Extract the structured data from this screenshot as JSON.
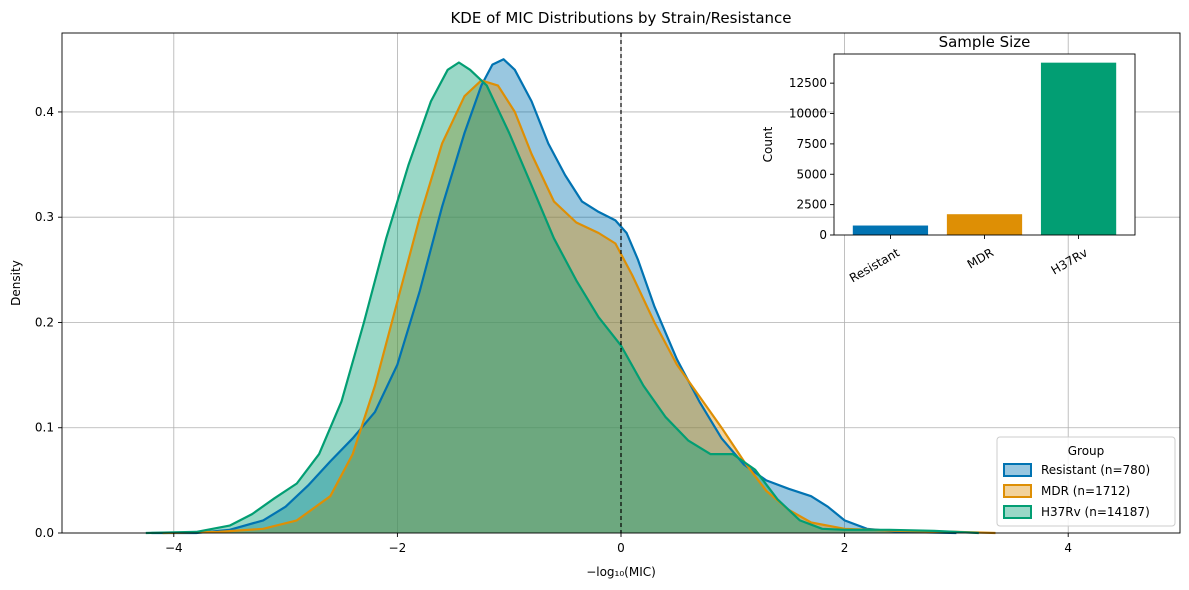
{
  "chart_data": [
    {
      "type": "area",
      "title": "KDE of MIC Distributions by Strain/Resistance",
      "xlabel": "−log₁₀(MIC)",
      "ylabel": "Density",
      "xlim": [
        -5,
        5
      ],
      "ylim": [
        0,
        0.475
      ],
      "xticks": [
        -4,
        -2,
        0,
        2,
        4
      ],
      "xtick_labels": [
        "−4",
        "−2",
        "0",
        "2",
        "4"
      ],
      "yticks": [
        0.0,
        0.1,
        0.2,
        0.3,
        0.4
      ],
      "ytick_labels": [
        "0.0",
        "0.1",
        "0.2",
        "0.3",
        "0.4"
      ],
      "grid": true,
      "vline": {
        "x": 0,
        "style": "dashed"
      },
      "legend": {
        "title": "Group",
        "placement": "lower-right"
      },
      "series": [
        {
          "name": "Resistant (n=780)",
          "color": "#0173b2",
          "points": [
            [
              -4.2,
              0.0
            ],
            [
              -3.8,
              0.0
            ],
            [
              -3.5,
              0.003
            ],
            [
              -3.2,
              0.012
            ],
            [
              -3.0,
              0.025
            ],
            [
              -2.8,
              0.045
            ],
            [
              -2.6,
              0.068
            ],
            [
              -2.4,
              0.09
            ],
            [
              -2.2,
              0.115
            ],
            [
              -2.0,
              0.16
            ],
            [
              -1.8,
              0.23
            ],
            [
              -1.6,
              0.31
            ],
            [
              -1.4,
              0.38
            ],
            [
              -1.25,
              0.425
            ],
            [
              -1.15,
              0.445
            ],
            [
              -1.05,
              0.45
            ],
            [
              -0.95,
              0.44
            ],
            [
              -0.8,
              0.41
            ],
            [
              -0.65,
              0.37
            ],
            [
              -0.5,
              0.34
            ],
            [
              -0.35,
              0.315
            ],
            [
              -0.2,
              0.305
            ],
            [
              -0.05,
              0.297
            ],
            [
              0.05,
              0.285
            ],
            [
              0.15,
              0.26
            ],
            [
              0.3,
              0.215
            ],
            [
              0.5,
              0.165
            ],
            [
              0.7,
              0.125
            ],
            [
              0.9,
              0.09
            ],
            [
              1.1,
              0.065
            ],
            [
              1.3,
              0.05
            ],
            [
              1.5,
              0.042
            ],
            [
              1.7,
              0.035
            ],
            [
              1.85,
              0.025
            ],
            [
              2.0,
              0.012
            ],
            [
              2.2,
              0.004
            ],
            [
              2.5,
              0.001
            ],
            [
              3.0,
              0.0
            ]
          ]
        },
        {
          "name": "MDR (n=1712)",
          "color": "#de8f05",
          "points": [
            [
              -4.1,
              0.0
            ],
            [
              -3.6,
              0.001
            ],
            [
              -3.2,
              0.004
            ],
            [
              -2.9,
              0.012
            ],
            [
              -2.6,
              0.035
            ],
            [
              -2.4,
              0.075
            ],
            [
              -2.2,
              0.14
            ],
            [
              -2.0,
              0.22
            ],
            [
              -1.8,
              0.3
            ],
            [
              -1.6,
              0.37
            ],
            [
              -1.4,
              0.415
            ],
            [
              -1.25,
              0.43
            ],
            [
              -1.1,
              0.425
            ],
            [
              -0.95,
              0.4
            ],
            [
              -0.8,
              0.36
            ],
            [
              -0.6,
              0.315
            ],
            [
              -0.4,
              0.295
            ],
            [
              -0.2,
              0.285
            ],
            [
              -0.05,
              0.275
            ],
            [
              0.1,
              0.245
            ],
            [
              0.3,
              0.2
            ],
            [
              0.5,
              0.16
            ],
            [
              0.7,
              0.13
            ],
            [
              0.9,
              0.1
            ],
            [
              1.1,
              0.068
            ],
            [
              1.3,
              0.04
            ],
            [
              1.5,
              0.022
            ],
            [
              1.7,
              0.01
            ],
            [
              2.0,
              0.004
            ],
            [
              2.5,
              0.002
            ],
            [
              3.0,
              0.001
            ],
            [
              3.35,
              0.0
            ]
          ]
        },
        {
          "name": "H37Rv (n=14187)",
          "color": "#029e73",
          "points": [
            [
              -4.25,
              0.0
            ],
            [
              -3.8,
              0.001
            ],
            [
              -3.5,
              0.007
            ],
            [
              -3.3,
              0.018
            ],
            [
              -3.1,
              0.033
            ],
            [
              -2.9,
              0.047
            ],
            [
              -2.7,
              0.075
            ],
            [
              -2.5,
              0.125
            ],
            [
              -2.3,
              0.2
            ],
            [
              -2.1,
              0.28
            ],
            [
              -1.9,
              0.35
            ],
            [
              -1.7,
              0.41
            ],
            [
              -1.55,
              0.44
            ],
            [
              -1.45,
              0.447
            ],
            [
              -1.35,
              0.44
            ],
            [
              -1.2,
              0.425
            ],
            [
              -1.0,
              0.38
            ],
            [
              -0.8,
              0.33
            ],
            [
              -0.6,
              0.28
            ],
            [
              -0.4,
              0.24
            ],
            [
              -0.2,
              0.205
            ],
            [
              0.0,
              0.178
            ],
            [
              0.2,
              0.14
            ],
            [
              0.4,
              0.11
            ],
            [
              0.6,
              0.088
            ],
            [
              0.8,
              0.075
            ],
            [
              1.0,
              0.075
            ],
            [
              1.2,
              0.06
            ],
            [
              1.4,
              0.032
            ],
            [
              1.6,
              0.012
            ],
            [
              1.8,
              0.004
            ],
            [
              2.0,
              0.003
            ],
            [
              2.4,
              0.003
            ],
            [
              2.8,
              0.002
            ],
            [
              3.2,
              0.0
            ]
          ]
        }
      ]
    },
    {
      "type": "bar",
      "title": "Sample Size",
      "xlabel": "",
      "ylabel": "Count",
      "categories": [
        "Resistant",
        "MDR",
        "H37Rv"
      ],
      "values": [
        780,
        1712,
        14187
      ],
      "colors": [
        "#0173b2",
        "#de8f05",
        "#029e73"
      ],
      "ylim": [
        0,
        14900
      ],
      "yticks": [
        0,
        2500,
        5000,
        7500,
        10000,
        12500
      ],
      "ytick_labels": [
        "0",
        "2500",
        "5000",
        "7500",
        "10000",
        "12500"
      ],
      "grid": false
    }
  ]
}
